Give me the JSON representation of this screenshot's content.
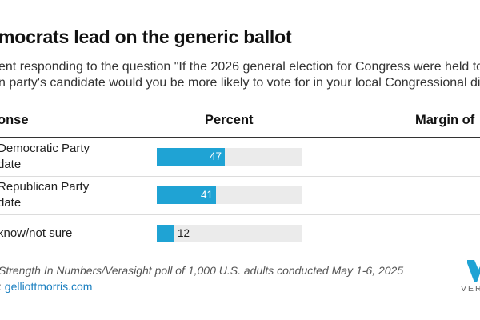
{
  "title": "mocrats lead on the generic ballot",
  "subtitle_lines": [
    "ent responding to the question \"If the 2026 general election for Congress were held toda",
    "n party's candidate would you be more likely to vote for in your local Congressional dist"
  ],
  "columns": {
    "response": "onse",
    "percent": "Percent",
    "margin": "Margin of"
  },
  "source": "Strength In Numbers/Verasight poll of 1,000 U.S. adults conducted May 1-6, 2025",
  "credit": {
    "prefix": ": ",
    "link": "gelliottmorris.com"
  },
  "logo": {
    "text": "VERA",
    "color": "#1fa3d4"
  },
  "colors": {
    "bar": "#1fa3d4",
    "track": "#ebebeb"
  },
  "chart_data": {
    "type": "bar",
    "orientation": "horizontal",
    "categories": [
      "Democratic Party\ndate",
      "Republican Party\ndate",
      "know/not sure"
    ],
    "values": [
      47,
      41,
      12
    ],
    "value_labels": [
      "47",
      "41",
      "12"
    ],
    "xlim": [
      0,
      100
    ],
    "grid": false,
    "legend": "none"
  }
}
